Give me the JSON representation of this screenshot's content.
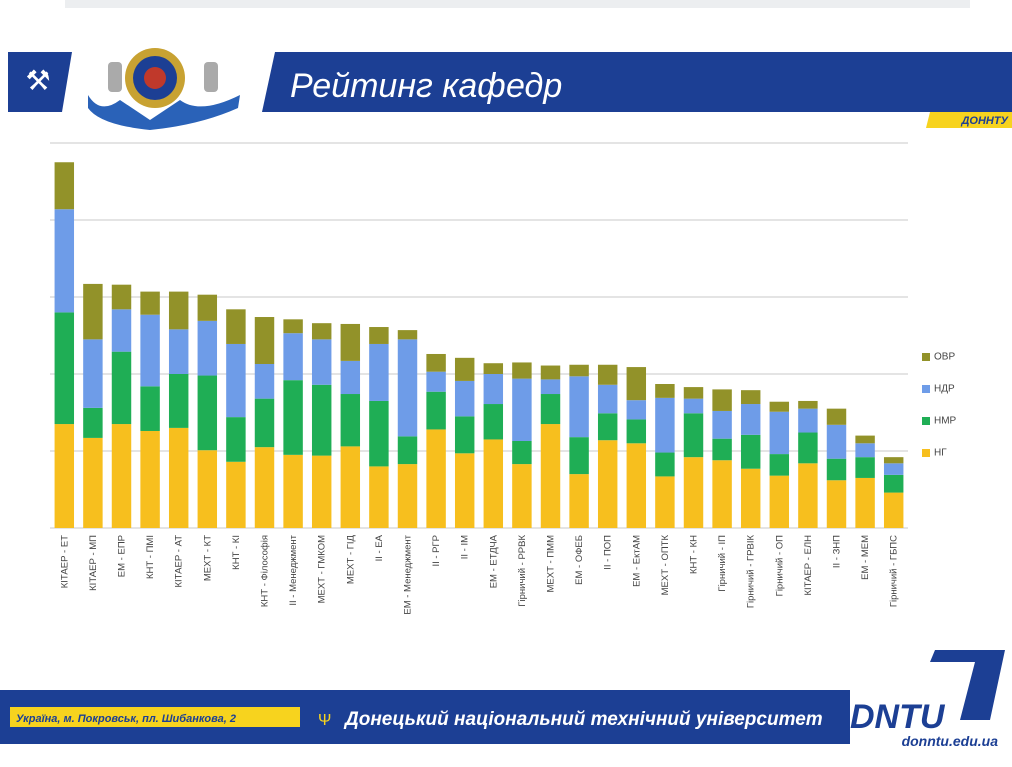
{
  "header": {
    "title": "Рейтинг кафедр",
    "tag": "ДОНHTУ"
  },
  "footer": {
    "address": "Україна, м. Покровськ, пл. Шибанкова, 2",
    "university": "Донецький національний технічний університет",
    "logo": "DNTU",
    "url": "donntu.edu.ua"
  },
  "chart_data": {
    "type": "stacked_bar",
    "categories": [
      "КІТАЕР - ЕТ",
      "КІТАЕР - МП",
      "ЕМ - ЕПР",
      "КНТ - ПМІ",
      "КІТАЕР - АТ",
      "МЕХТ - КТ",
      "КНТ - КІ",
      "КНТ - Філософія",
      "ІІ - Менеджмент",
      "МЕХТ - ГМКОМ",
      "МЕХТ - ГІД",
      "ІІ - ЕА",
      "ЕМ - Менеджмент",
      "ІІ - РГР",
      "ІІ - ІМ",
      "ЕМ - ЕТДЧА",
      "Гірничий - РРВК",
      "МЕХТ - ПММ",
      "ЕМ - ОФЕБ",
      "ІІ - ПОП",
      "ЕМ - ЕктАМ",
      "МЕХТ - ОПТК",
      "КНТ - КН",
      "Гірничий - ІП",
      "Гірничий - ГРВІК",
      "Гірничий - ОП",
      "КІТАЕР - ЕЛН",
      "ІІ - ЗНП",
      "ЕМ - МЕМ",
      "Гірничий - ГБПС"
    ],
    "series": [
      {
        "name": "НГ",
        "color": "#f7bf1e",
        "values": [
          13.5,
          11.7,
          13.5,
          12.6,
          13.0,
          10.1,
          8.6,
          10.5,
          9.5,
          9.4,
          10.6,
          8.0,
          8.3,
          12.8,
          9.7,
          11.5,
          8.3,
          13.5,
          7.0,
          11.4,
          11.0,
          6.7,
          9.2,
          8.8,
          7.7,
          6.8,
          8.4,
          6.2,
          6.5,
          4.6
        ]
      },
      {
        "name": "НМР",
        "color": "#1fae55",
        "values": [
          14.5,
          3.9,
          9.4,
          5.8,
          7.0,
          9.7,
          5.8,
          6.3,
          9.7,
          9.2,
          6.8,
          8.5,
          3.6,
          4.9,
          4.8,
          4.6,
          3.0,
          3.9,
          4.8,
          3.5,
          3.1,
          3.1,
          5.7,
          2.8,
          4.4,
          2.8,
          4.0,
          2.8,
          2.7,
          2.3
        ]
      },
      {
        "name": "НДР",
        "color": "#6e9ce8",
        "values": [
          13.4,
          8.9,
          5.5,
          9.3,
          5.8,
          7.1,
          9.5,
          4.5,
          6.1,
          5.9,
          4.3,
          7.4,
          12.6,
          2.6,
          4.6,
          3.9,
          8.1,
          1.9,
          7.9,
          3.7,
          2.5,
          7.1,
          1.9,
          3.6,
          4.0,
          5.5,
          3.1,
          4.4,
          1.8,
          1.5
        ]
      },
      {
        "name": "ОВР",
        "color": "#929229",
        "values": [
          6.1,
          7.2,
          3.2,
          3.0,
          4.9,
          3.4,
          4.5,
          6.1,
          1.8,
          2.1,
          4.8,
          2.2,
          1.2,
          2.3,
          3.0,
          1.4,
          2.1,
          1.8,
          1.5,
          2.6,
          4.3,
          1.8,
          1.5,
          2.8,
          1.8,
          1.3,
          1.0,
          2.1,
          1.0,
          0.8
        ]
      }
    ],
    "ylim": [
      0,
      50
    ],
    "gridlines": [
      0,
      10,
      20,
      30,
      40,
      50
    ],
    "grid": true
  }
}
